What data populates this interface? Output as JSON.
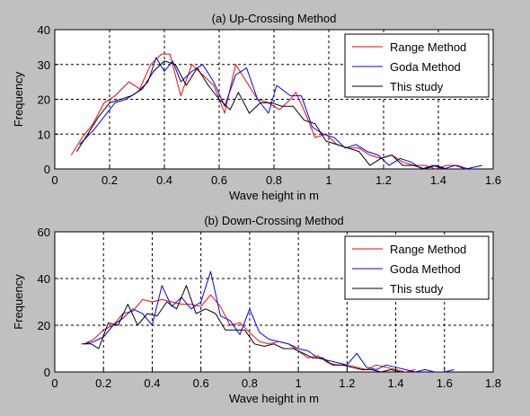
{
  "colors": {
    "background": "#c0c0c0",
    "range": "#ff0000",
    "goda": "#0000ff",
    "study": "#000000"
  },
  "chart_data": [
    {
      "type": "line",
      "title": "(a) Up-Crossing Method",
      "xlabel": "Wave height in m",
      "ylabel": "Frequency",
      "xlim": [
        0,
        1.6
      ],
      "ylim": [
        0,
        40
      ],
      "xticks": [
        "0",
        "0.2",
        "0.4",
        "0.6",
        "0.8",
        "1",
        "1.2",
        "1.4",
        "1.6"
      ],
      "yticks": [
        "0",
        "10",
        "20",
        "30",
        "40"
      ],
      "grid": true,
      "legend_position": "top-right",
      "series": [
        {
          "name": "Range Method",
          "color": "#ff0000",
          "points": [
            [
              0.06,
              4
            ],
            [
              0.1,
              9
            ],
            [
              0.14,
              13
            ],
            [
              0.18,
              19
            ],
            [
              0.22,
              21
            ],
            [
              0.27,
              25
            ],
            [
              0.31,
              23
            ],
            [
              0.35,
              30
            ],
            [
              0.39,
              33
            ],
            [
              0.42,
              33
            ],
            [
              0.46,
              21
            ],
            [
              0.5,
              30
            ],
            [
              0.54,
              27
            ],
            [
              0.58,
              24
            ],
            [
              0.62,
              16
            ],
            [
              0.66,
              30
            ],
            [
              0.7,
              25
            ],
            [
              0.74,
              20
            ],
            [
              0.78,
              19
            ],
            [
              0.82,
              17
            ],
            [
              0.86,
              20
            ],
            [
              0.88,
              22
            ],
            [
              0.92,
              15
            ],
            [
              0.95,
              9
            ],
            [
              0.99,
              10
            ],
            [
              1.03,
              7
            ],
            [
              1.07,
              6
            ],
            [
              1.11,
              6
            ],
            [
              1.15,
              4
            ],
            [
              1.19,
              3
            ],
            [
              1.23,
              4
            ],
            [
              1.27,
              2
            ],
            [
              1.31,
              1
            ],
            [
              1.35,
              1
            ],
            [
              1.39,
              0
            ],
            [
              1.43,
              1
            ],
            [
              1.47,
              1
            ],
            [
              1.51,
              0
            ]
          ]
        },
        {
          "name": "Goda Method",
          "color": "#0000ff",
          "points": [
            [
              0.09,
              7
            ],
            [
              0.14,
              11
            ],
            [
              0.18,
              15
            ],
            [
              0.22,
              19
            ],
            [
              0.26,
              20
            ],
            [
              0.3,
              22
            ],
            [
              0.34,
              25
            ],
            [
              0.37,
              32
            ],
            [
              0.4,
              28
            ],
            [
              0.43,
              31
            ],
            [
              0.46,
              25
            ],
            [
              0.5,
              28
            ],
            [
              0.54,
              30
            ],
            [
              0.58,
              25
            ],
            [
              0.62,
              18
            ],
            [
              0.66,
              27
            ],
            [
              0.7,
              29
            ],
            [
              0.74,
              20
            ],
            [
              0.78,
              16
            ],
            [
              0.81,
              24
            ],
            [
              0.86,
              21
            ],
            [
              0.9,
              21
            ],
            [
              0.94,
              12
            ],
            [
              0.98,
              10
            ],
            [
              1.02,
              9
            ],
            [
              1.06,
              6
            ],
            [
              1.1,
              7
            ],
            [
              1.14,
              5
            ],
            [
              1.18,
              4
            ],
            [
              1.22,
              1
            ],
            [
              1.26,
              3
            ],
            [
              1.3,
              2
            ],
            [
              1.34,
              0
            ],
            [
              1.38,
              1
            ],
            [
              1.42,
              0
            ],
            [
              1.46,
              1
            ],
            [
              1.5,
              0
            ],
            [
              1.56,
              1
            ]
          ]
        },
        {
          "name": "This study",
          "color": "#000000",
          "points": [
            [
              0.08,
              5
            ],
            [
              0.12,
              10
            ],
            [
              0.16,
              15
            ],
            [
              0.2,
              19
            ],
            [
              0.24,
              20
            ],
            [
              0.28,
              21
            ],
            [
              0.32,
              23
            ],
            [
              0.36,
              28
            ],
            [
              0.4,
              31
            ],
            [
              0.44,
              30
            ],
            [
              0.48,
              24
            ],
            [
              0.52,
              29
            ],
            [
              0.56,
              24
            ],
            [
              0.6,
              20
            ],
            [
              0.64,
              17
            ],
            [
              0.67,
              22
            ],
            [
              0.71,
              16
            ],
            [
              0.75,
              19
            ],
            [
              0.79,
              19
            ],
            [
              0.83,
              18
            ],
            [
              0.87,
              18
            ],
            [
              0.91,
              14
            ],
            [
              0.95,
              13
            ],
            [
              0.99,
              8
            ],
            [
              1.03,
              7
            ],
            [
              1.07,
              6
            ],
            [
              1.11,
              5
            ],
            [
              1.15,
              1
            ],
            [
              1.19,
              3
            ],
            [
              1.23,
              4
            ],
            [
              1.27,
              1
            ],
            [
              1.31,
              1
            ],
            [
              1.35,
              0
            ],
            [
              1.39,
              1
            ],
            [
              1.43,
              0
            ]
          ]
        }
      ]
    },
    {
      "type": "line",
      "title": "(b) Down-Crossing Method",
      "xlabel": "Wave height in m",
      "ylabel": "Frequency",
      "xlim": [
        0,
        1.8
      ],
      "ylim": [
        0,
        60
      ],
      "xticks": [
        "0",
        "0.2",
        "0.4",
        "0.6",
        "0.8",
        "1",
        "1.2",
        "1.4",
        "1.6",
        "1.8"
      ],
      "yticks": [
        "0",
        "20",
        "40",
        "60"
      ],
      "grid": true,
      "legend_position": "top-right",
      "series": [
        {
          "name": "Range Method",
          "color": "#ff0000",
          "points": [
            [
              0.12,
              12
            ],
            [
              0.16,
              14
            ],
            [
              0.2,
              18
            ],
            [
              0.24,
              20
            ],
            [
              0.28,
              25
            ],
            [
              0.32,
              26
            ],
            [
              0.36,
              31
            ],
            [
              0.4,
              30
            ],
            [
              0.44,
              31
            ],
            [
              0.48,
              30
            ],
            [
              0.52,
              29
            ],
            [
              0.56,
              29
            ],
            [
              0.6,
              28
            ],
            [
              0.64,
              33
            ],
            [
              0.68,
              28
            ],
            [
              0.72,
              20
            ],
            [
              0.76,
              21
            ],
            [
              0.8,
              17
            ],
            [
              0.84,
              13
            ],
            [
              0.88,
              12
            ],
            [
              0.92,
              13
            ],
            [
              0.96,
              12
            ],
            [
              1,
              9
            ],
            [
              1.04,
              6
            ],
            [
              1.08,
              7
            ],
            [
              1.12,
              4
            ],
            [
              1.16,
              3
            ],
            [
              1.2,
              3
            ],
            [
              1.24,
              2
            ],
            [
              1.28,
              1
            ],
            [
              1.32,
              3
            ],
            [
              1.36,
              2
            ],
            [
              1.4,
              1
            ],
            [
              1.44,
              0
            ],
            [
              1.48,
              1
            ]
          ]
        },
        {
          "name": "Goda Method",
          "color": "#0000ff",
          "points": [
            [
              0.12,
              12
            ],
            [
              0.16,
              13
            ],
            [
              0.2,
              15
            ],
            [
              0.24,
              20
            ],
            [
              0.28,
              23
            ],
            [
              0.32,
              27
            ],
            [
              0.36,
              25
            ],
            [
              0.4,
              20
            ],
            [
              0.44,
              37
            ],
            [
              0.48,
              28
            ],
            [
              0.52,
              32
            ],
            [
              0.56,
              27
            ],
            [
              0.6,
              30
            ],
            [
              0.64,
              43
            ],
            [
              0.68,
              24
            ],
            [
              0.72,
              22
            ],
            [
              0.76,
              16
            ],
            [
              0.8,
              27
            ],
            [
              0.84,
              17
            ],
            [
              0.88,
              14
            ],
            [
              0.92,
              13
            ],
            [
              0.96,
              12
            ],
            [
              1,
              10
            ],
            [
              1.04,
              9
            ],
            [
              1.08,
              6
            ],
            [
              1.12,
              5
            ],
            [
              1.16,
              4
            ],
            [
              1.2,
              3
            ],
            [
              1.24,
              8
            ],
            [
              1.28,
              2
            ],
            [
              1.32,
              1
            ],
            [
              1.36,
              3
            ],
            [
              1.4,
              2
            ],
            [
              1.44,
              1
            ],
            [
              1.48,
              0
            ],
            [
              1.52,
              1
            ],
            [
              1.56,
              0
            ],
            [
              1.6,
              0
            ],
            [
              1.64,
              1
            ]
          ]
        },
        {
          "name": "This study",
          "color": "#000000",
          "points": [
            [
              0.11,
              12
            ],
            [
              0.15,
              12
            ],
            [
              0.18,
              10
            ],
            [
              0.22,
              21
            ],
            [
              0.26,
              20
            ],
            [
              0.3,
              29
            ],
            [
              0.34,
              20
            ],
            [
              0.38,
              25
            ],
            [
              0.42,
              24
            ],
            [
              0.46,
              30
            ],
            [
              0.5,
              27
            ],
            [
              0.54,
              37
            ],
            [
              0.58,
              25
            ],
            [
              0.62,
              27
            ],
            [
              0.66,
              25
            ],
            [
              0.7,
              18
            ],
            [
              0.74,
              18
            ],
            [
              0.78,
              18
            ],
            [
              0.82,
              12
            ],
            [
              0.86,
              11
            ],
            [
              0.9,
              12
            ],
            [
              0.94,
              10
            ],
            [
              0.98,
              10
            ],
            [
              1.02,
              8
            ],
            [
              1.06,
              6
            ],
            [
              1.1,
              6
            ],
            [
              1.14,
              3
            ],
            [
              1.18,
              3
            ],
            [
              1.22,
              2
            ],
            [
              1.26,
              1
            ],
            [
              1.3,
              1
            ],
            [
              1.34,
              0
            ],
            [
              1.38,
              1
            ],
            [
              1.42,
              0
            ]
          ]
        }
      ]
    }
  ]
}
